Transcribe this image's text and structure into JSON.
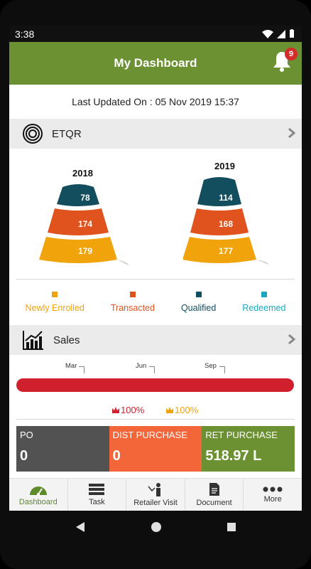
{
  "status_bar": {
    "time": "3:38"
  },
  "app_bar": {
    "title": "My Dashboard",
    "notification_count": "9"
  },
  "last_updated": "Last Updated On : 05 Nov 2019 15:37",
  "etqr": {
    "label": "ETQR",
    "funnels": [
      {
        "year": "2018",
        "qualified": "78",
        "transacted": "174",
        "enrolled": "179"
      },
      {
        "year": "2019",
        "qualified": "114",
        "transacted": "168",
        "enrolled": "177"
      }
    ],
    "legend": [
      {
        "label": "Newly Enrolled",
        "color": "#f0a30a"
      },
      {
        "label": "Transacted",
        "color": "#e0521e"
      },
      {
        "label": "Qualified",
        "color": "#134e5e"
      },
      {
        "label": "Redeemed",
        "color": "#1aa8c0"
      }
    ]
  },
  "sales": {
    "label": "Sales",
    "months": [
      "Mar",
      "Jun",
      "Sep"
    ],
    "pct_red": "100%",
    "pct_orange": "100%",
    "tiles": [
      {
        "label": "PO",
        "value": "0",
        "color": "#525252"
      },
      {
        "label": "DIST PURCHASE",
        "value": "0",
        "color": "#f2663a"
      },
      {
        "label": "RET PURCHASE",
        "value": "518.97 L",
        "color": "#6b9132"
      }
    ]
  },
  "bottom_nav": [
    {
      "label": "Dashboard",
      "icon": "dashboard-icon"
    },
    {
      "label": "Task",
      "icon": "task-icon"
    },
    {
      "label": "Retailer Visit",
      "icon": "retailer-visit-icon"
    },
    {
      "label": "Document",
      "icon": "document-icon"
    },
    {
      "label": "More",
      "icon": "more-icon"
    }
  ]
}
